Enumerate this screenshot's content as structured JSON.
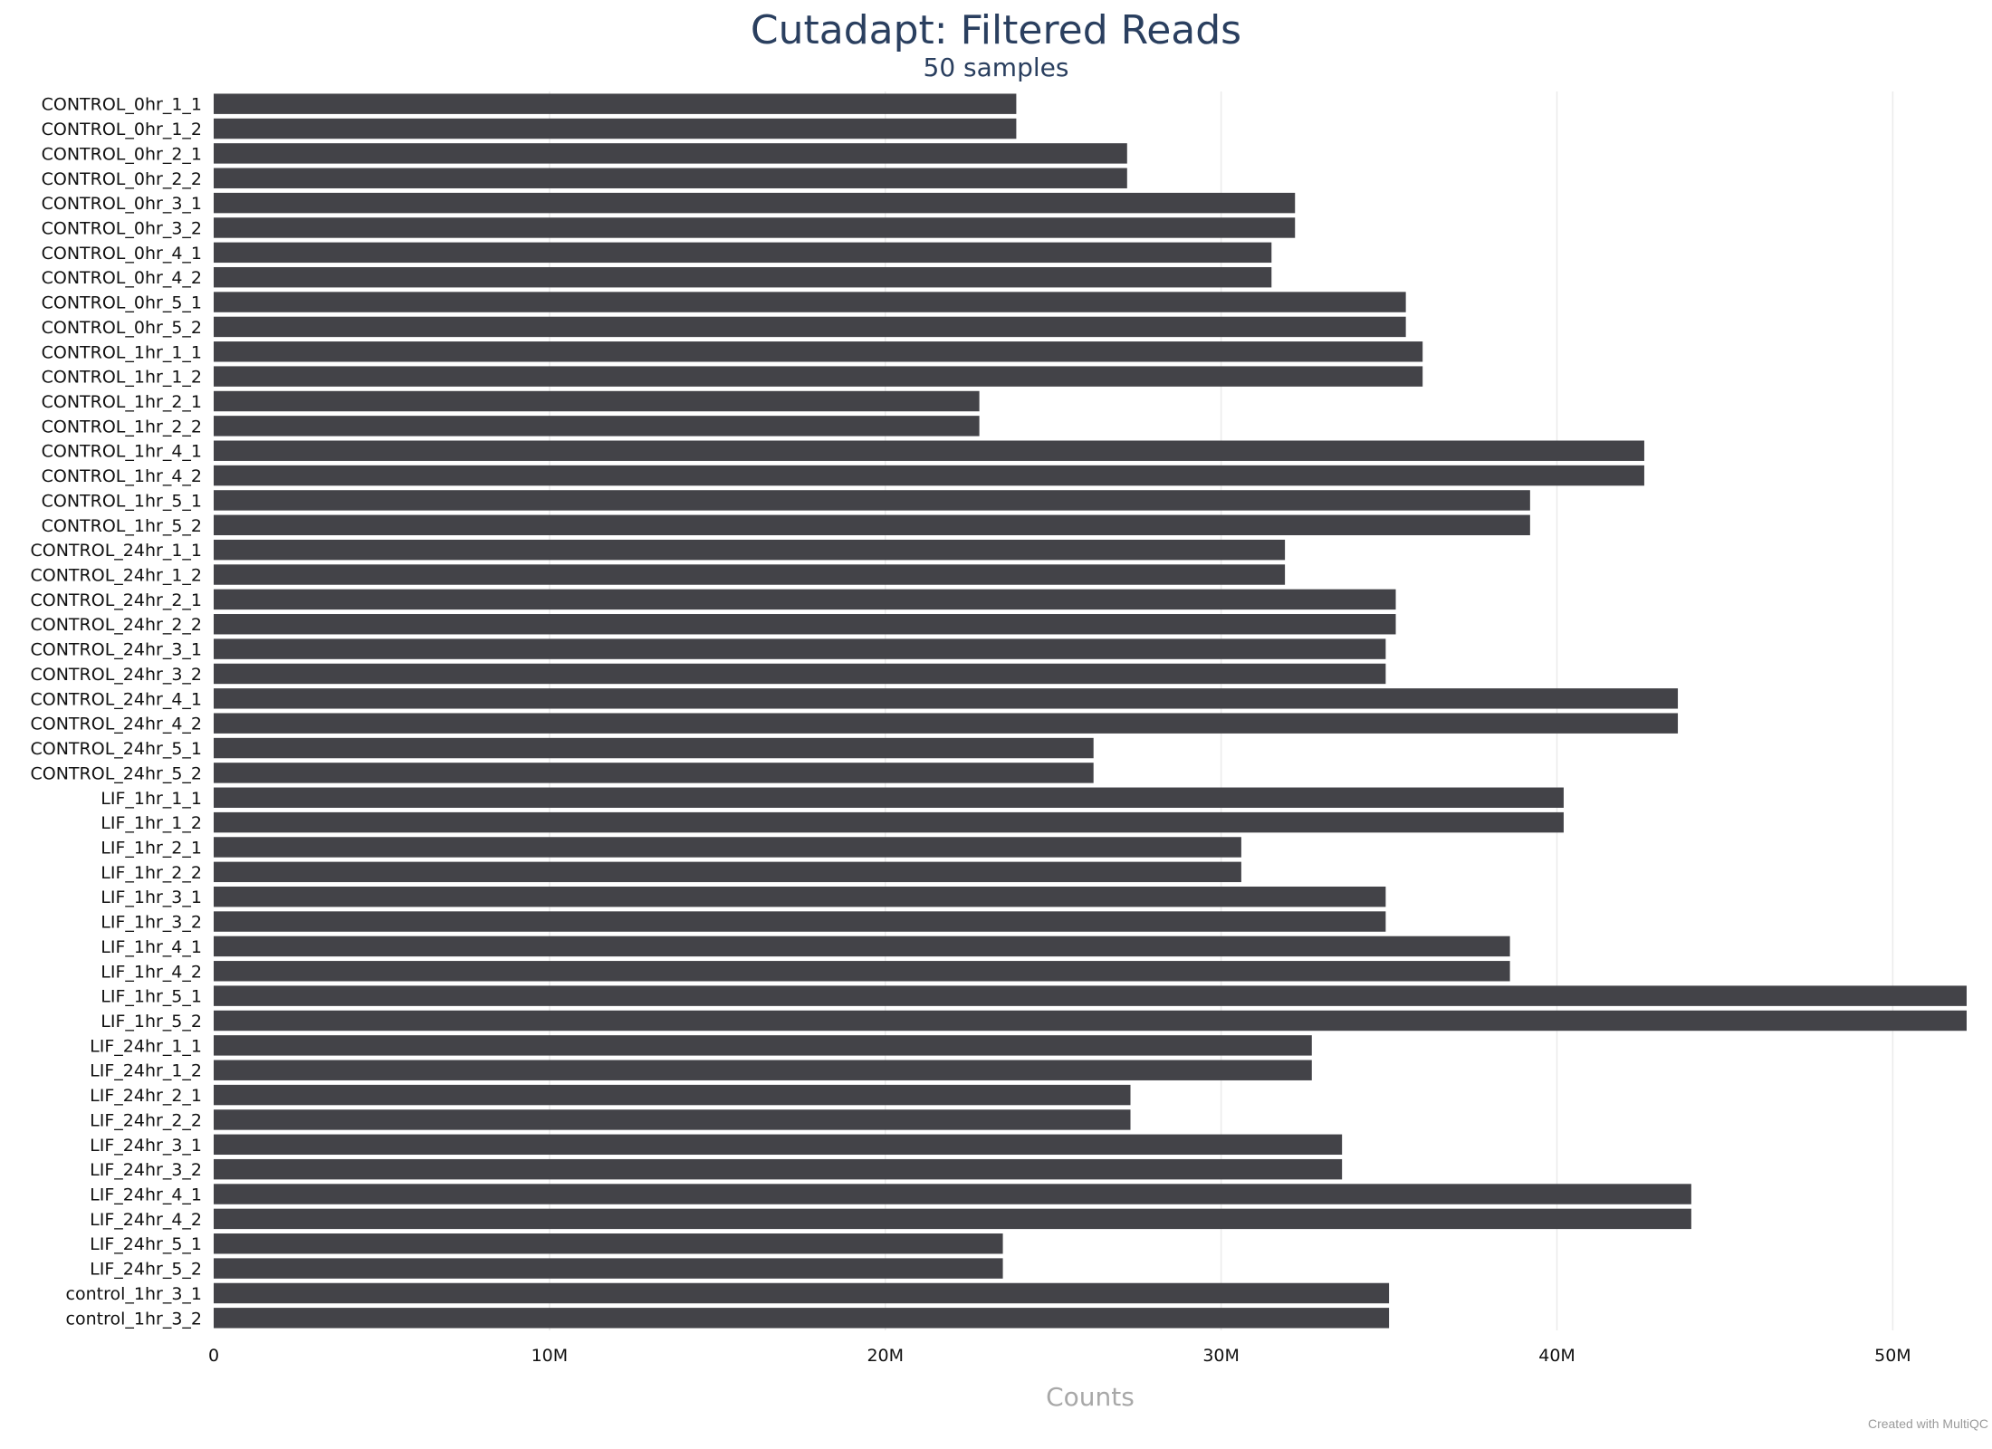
{
  "chart_data": {
    "type": "bar",
    "orientation": "horizontal",
    "title": "Cutadapt: Filtered Reads",
    "subtitle": "50 samples",
    "xlabel": "Counts",
    "ylabel": "",
    "xlim": [
      0,
      52200000
    ],
    "x_ticks": [
      {
        "value": 0,
        "label": "0"
      },
      {
        "value": 10000000,
        "label": "10M"
      },
      {
        "value": 20000000,
        "label": "20M"
      },
      {
        "value": 30000000,
        "label": "30M"
      },
      {
        "value": 40000000,
        "label": "40M"
      },
      {
        "value": 50000000,
        "label": "50M"
      }
    ],
    "grid": true,
    "bar_color": "#434348",
    "categories": [
      "CONTROL_0hr_1_1",
      "CONTROL_0hr_1_2",
      "CONTROL_0hr_2_1",
      "CONTROL_0hr_2_2",
      "CONTROL_0hr_3_1",
      "CONTROL_0hr_3_2",
      "CONTROL_0hr_4_1",
      "CONTROL_0hr_4_2",
      "CONTROL_0hr_5_1",
      "CONTROL_0hr_5_2",
      "CONTROL_1hr_1_1",
      "CONTROL_1hr_1_2",
      "CONTROL_1hr_2_1",
      "CONTROL_1hr_2_2",
      "CONTROL_1hr_4_1",
      "CONTROL_1hr_4_2",
      "CONTROL_1hr_5_1",
      "CONTROL_1hr_5_2",
      "CONTROL_24hr_1_1",
      "CONTROL_24hr_1_2",
      "CONTROL_24hr_2_1",
      "CONTROL_24hr_2_2",
      "CONTROL_24hr_3_1",
      "CONTROL_24hr_3_2",
      "CONTROL_24hr_4_1",
      "CONTROL_24hr_4_2",
      "CONTROL_24hr_5_1",
      "CONTROL_24hr_5_2",
      "LIF_1hr_1_1",
      "LIF_1hr_1_2",
      "LIF_1hr_2_1",
      "LIF_1hr_2_2",
      "LIF_1hr_3_1",
      "LIF_1hr_3_2",
      "LIF_1hr_4_1",
      "LIF_1hr_4_2",
      "LIF_1hr_5_1",
      "LIF_1hr_5_2",
      "LIF_24hr_1_1",
      "LIF_24hr_1_2",
      "LIF_24hr_2_1",
      "LIF_24hr_2_2",
      "LIF_24hr_3_1",
      "LIF_24hr_3_2",
      "LIF_24hr_4_1",
      "LIF_24hr_4_2",
      "LIF_24hr_5_1",
      "LIF_24hr_5_2",
      "control_1hr_3_1",
      "control_1hr_3_2"
    ],
    "values": [
      23900000,
      23900000,
      27200000,
      27200000,
      32200000,
      32200000,
      31500000,
      31500000,
      35500000,
      35500000,
      36000000,
      36000000,
      22800000,
      22800000,
      42600000,
      42600000,
      39200000,
      39200000,
      31900000,
      31900000,
      35200000,
      35200000,
      34900000,
      34900000,
      43600000,
      43600000,
      26200000,
      26200000,
      40200000,
      40200000,
      30600000,
      30600000,
      34900000,
      34900000,
      38600000,
      38600000,
      52200000,
      52200000,
      32700000,
      32700000,
      27300000,
      27300000,
      33600000,
      33600000,
      44000000,
      44000000,
      23500000,
      23500000,
      35000000,
      35000000
    ]
  },
  "footer": {
    "credit": "Created with MultiQC"
  }
}
